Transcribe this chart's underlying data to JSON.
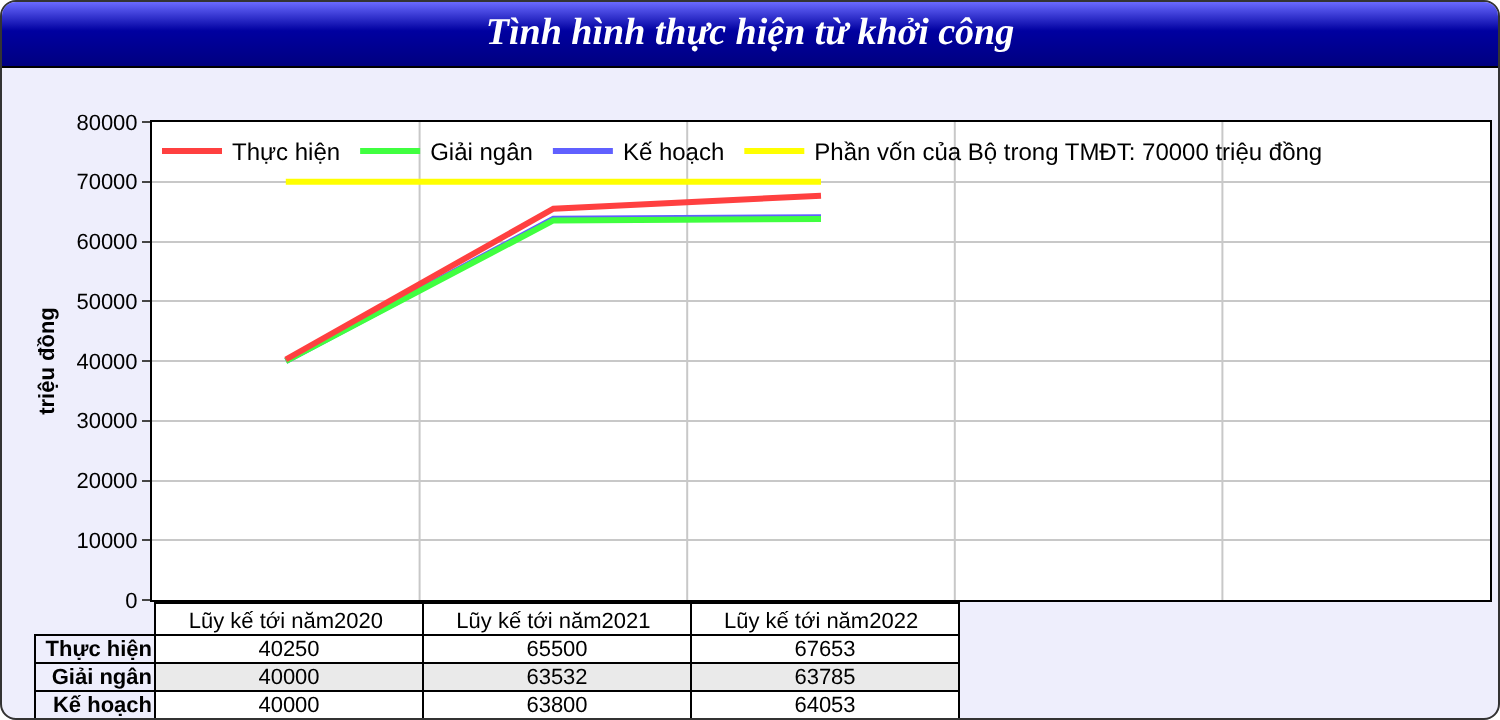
{
  "chart_data": {
    "type": "line",
    "title": "Tình hình thực hiện từ khởi công",
    "ylabel": "triệu đồng",
    "categories": [
      "Lũy kế tới năm2020",
      "Lũy kế tới năm2021",
      "Lũy kế tới năm2022",
      null,
      null
    ],
    "series": [
      {
        "name": "Thực hiện",
        "color": "#ff4040",
        "values": [
          40250,
          65500,
          67653,
          null,
          null
        ],
        "value_labels": [
          "40250",
          "65500",
          "67653",
          null,
          null
        ]
      },
      {
        "name": "Giải ngân",
        "color": "#40ff40",
        "values": [
          40000,
          63532,
          63785,
          null,
          null
        ],
        "value_labels": [
          "40000",
          "63532",
          "63785",
          null,
          null
        ]
      },
      {
        "name": "Kế hoạch",
        "color": "#6060ff",
        "values": [
          40000,
          63800,
          64053,
          null,
          null
        ],
        "value_labels": [
          "40000",
          "63800",
          "64053",
          null,
          null
        ]
      },
      {
        "name": "Phần vốn của Bộ trong TMĐT: 70000 triệu đồng",
        "color": "#ffff00",
        "values": [
          70000,
          70000,
          70000,
          null,
          null
        ]
      }
    ],
    "ylim": [
      0,
      80000
    ],
    "yticks": [
      0,
      10000,
      20000,
      30000,
      40000,
      50000,
      60000,
      70000,
      80000
    ],
    "grid": true,
    "legend": "top left"
  }
}
